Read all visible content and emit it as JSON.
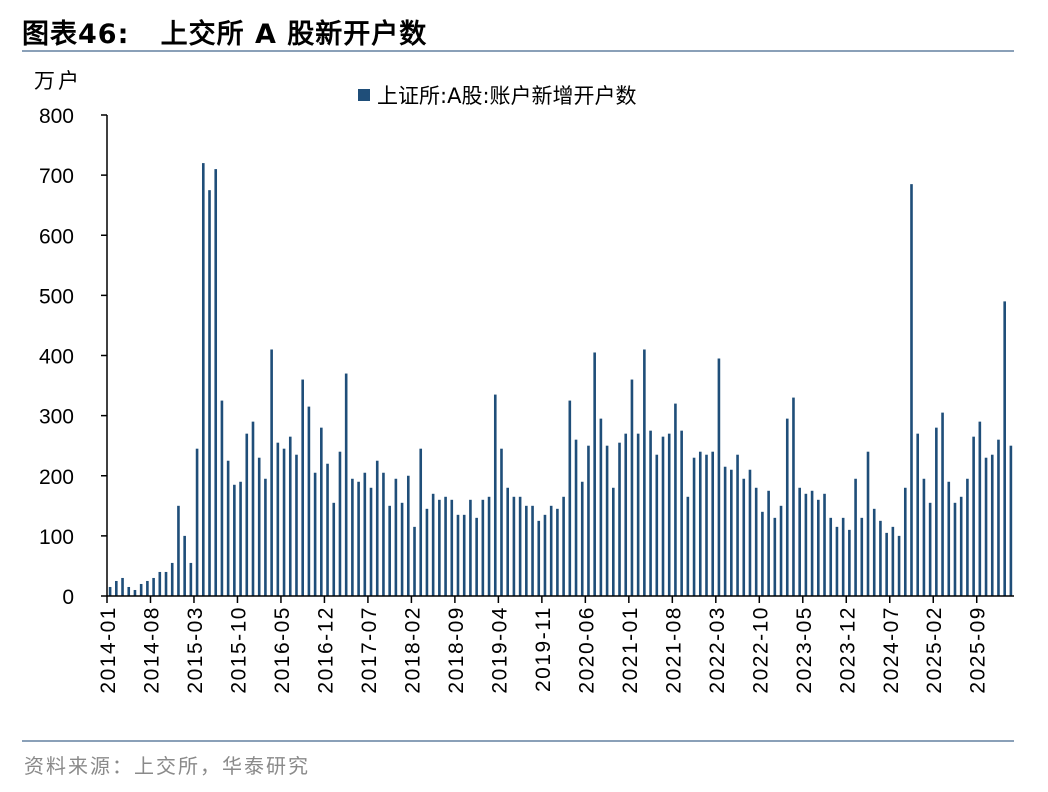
{
  "header": {
    "title": "图表46:   上交所 A 股新开户数"
  },
  "footer": {
    "source": "资料来源：上交所，华泰研究"
  },
  "colors": {
    "bar": "#1f4e79",
    "axis": "#000000",
    "rule": "#8aa0b8"
  },
  "chart_data": {
    "type": "bar",
    "title": "",
    "unit_label": "万户",
    "ylabel": "万户",
    "xlabel": "",
    "ylim": [
      0,
      800
    ],
    "yticks": [
      "0",
      "100",
      "200",
      "300",
      "400",
      "500",
      "600",
      "700",
      "800"
    ],
    "xtick_labels": [
      "2014-01",
      "2014-08",
      "2015-03",
      "2015-10",
      "2016-05",
      "2016-12",
      "2017-07",
      "2018-02",
      "2018-09",
      "2019-04",
      "2019-11",
      "2020-06",
      "2021-01",
      "2021-08",
      "2022-03",
      "2022-10",
      "2023-05",
      "2023-12",
      "2024-07",
      "2025-02",
      "2025-09"
    ],
    "grid": false,
    "legend": "top-center",
    "series": [
      {
        "name": "上证所:A股:账户新增开户数",
        "start": "2014-01",
        "values": [
          15,
          25,
          30,
          15,
          10,
          20,
          25,
          30,
          40,
          40,
          55,
          150,
          100,
          55,
          245,
          720,
          675,
          710,
          325,
          225,
          185,
          190,
          270,
          290,
          230,
          195,
          410,
          255,
          245,
          265,
          235,
          360,
          315,
          205,
          280,
          220,
          155,
          240,
          370,
          195,
          190,
          205,
          180,
          225,
          205,
          150,
          195,
          155,
          200,
          115,
          245,
          145,
          170,
          160,
          165,
          160,
          135,
          135,
          160,
          130,
          160,
          165,
          335,
          245,
          180,
          165,
          165,
          150,
          150,
          125,
          135,
          150,
          145,
          165,
          325,
          260,
          190,
          250,
          405,
          295,
          250,
          180,
          255,
          270,
          360,
          270,
          410,
          275,
          235,
          265,
          270,
          320,
          275,
          165,
          230,
          240,
          235,
          240,
          395,
          215,
          210,
          235,
          195,
          210,
          180,
          140,
          175,
          130,
          150,
          295,
          330,
          180,
          170,
          175,
          160,
          170,
          130,
          115,
          130,
          110,
          195,
          130,
          240,
          145,
          125,
          105,
          115,
          100,
          180,
          685,
          270,
          195,
          155,
          280,
          305,
          190,
          155,
          165,
          195,
          265,
          290,
          230,
          235,
          260,
          490,
          250
        ]
      }
    ]
  }
}
